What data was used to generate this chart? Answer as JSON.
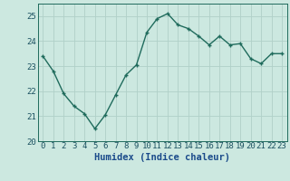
{
  "x": [
    0,
    1,
    2,
    3,
    4,
    5,
    6,
    7,
    8,
    9,
    10,
    11,
    12,
    13,
    14,
    15,
    16,
    17,
    18,
    19,
    20,
    21,
    22,
    23
  ],
  "y": [
    23.4,
    22.8,
    21.9,
    21.4,
    21.1,
    20.5,
    21.05,
    21.85,
    22.65,
    23.05,
    24.35,
    24.9,
    25.1,
    24.65,
    24.5,
    24.2,
    23.85,
    24.2,
    23.85,
    23.9,
    23.3,
    23.1,
    23.5,
    23.5
  ],
  "line_color": "#1f6b5c",
  "marker": "+",
  "bg_color": "#cce8e0",
  "grid_color": "#b0d0c8",
  "xlabel": "Humidex (Indice chaleur)",
  "xlabel_color": "#1a4a8a",
  "tick_label_color": "#1a5060",
  "ylim": [
    20.0,
    25.5
  ],
  "xlim": [
    -0.5,
    23.5
  ],
  "yticks": [
    20,
    21,
    22,
    23,
    24,
    25
  ],
  "xticks": [
    0,
    1,
    2,
    3,
    4,
    5,
    6,
    7,
    8,
    9,
    10,
    11,
    12,
    13,
    14,
    15,
    16,
    17,
    18,
    19,
    20,
    21,
    22,
    23
  ],
  "markersize": 3.5,
  "linewidth": 1.0,
  "markeredgewidth": 1.0,
  "fontsize_xlabel": 7.5,
  "fontsize_ticks": 6.5
}
